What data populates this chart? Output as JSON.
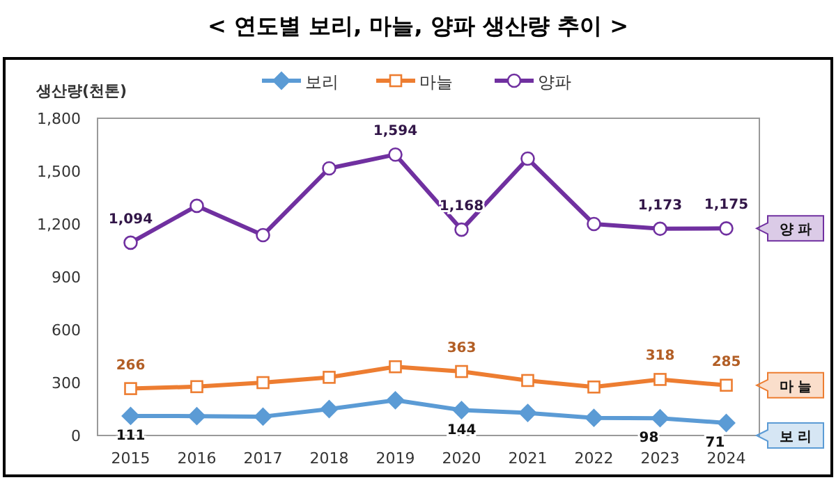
{
  "chart_data": {
    "type": "line",
    "title": "< 연도별 보리, 마늘, 양파 생산량 추이 >",
    "ylabel": "생산량(천톤)",
    "categories": [
      "2015",
      "2016",
      "2017",
      "2018",
      "2019",
      "2020",
      "2021",
      "2022",
      "2023",
      "2024"
    ],
    "ylim": [
      0,
      1800
    ],
    "yticks": [
      0,
      {
        "value": 300,
        "label": "300"
      },
      {
        "value": 600,
        "label": "600"
      },
      {
        "value": 900,
        "label": "900"
      },
      {
        "value": 1200,
        "label": "1,200"
      },
      {
        "value": 1500,
        "label": "1,500"
      },
      {
        "value": 1800,
        "label": "1,800"
      }
    ],
    "grid": false,
    "legend": "top",
    "series": [
      {
        "name": "보리",
        "color": "#5b9bd5",
        "marker": "diamond",
        "values": [
          111,
          110,
          107,
          150,
          200,
          144,
          128,
          100,
          98,
          71
        ],
        "value_labels": [
          "111",
          null,
          null,
          null,
          null,
          "144",
          null,
          null,
          "98",
          "71"
        ]
      },
      {
        "name": "마늘",
        "color": "#ed7d31",
        "marker": "square",
        "values": [
          266,
          277,
          300,
          330,
          390,
          363,
          312,
          275,
          318,
          285
        ],
        "value_labels": [
          "266",
          null,
          null,
          null,
          null,
          "363",
          null,
          null,
          "318",
          "285"
        ]
      },
      {
        "name": "양파",
        "color": "#7030a0",
        "marker": "circle",
        "values": [
          1094,
          1303,
          1137,
          1516,
          1594,
          1168,
          1571,
          1200,
          1173,
          1175
        ],
        "value_labels": [
          "1,094",
          null,
          null,
          null,
          "1,594",
          "1,168",
          null,
          null,
          "1,173",
          "1,175"
        ]
      }
    ],
    "annotations": [
      "보 리",
      "마 늘",
      "양 파"
    ]
  }
}
